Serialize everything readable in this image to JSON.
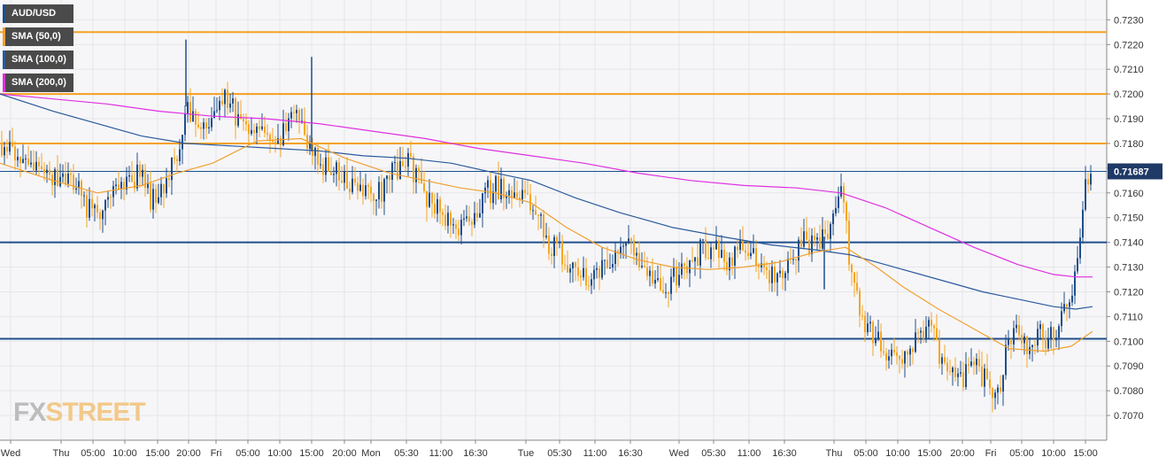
{
  "chart_data": {
    "type": "candlestick",
    "symbol": "AUD/USD",
    "ylim": [
      0.706,
      0.7238
    ],
    "yticks": [
      "0.7070",
      "0.7080",
      "0.7090",
      "0.7100",
      "0.7110",
      "0.7120",
      "0.7130",
      "0.7140",
      "0.7150",
      "0.7160",
      "0.7170",
      "0.7180",
      "0.7190",
      "0.7200",
      "0.7210",
      "0.7220",
      "0.7230"
    ],
    "xticks": [
      "Wed",
      "Thu",
      "05:00",
      "10:00",
      "15:00",
      "20:00",
      "Fri",
      "05:00",
      "10:00",
      "15:00",
      "20:00",
      "Mon",
      "05:30",
      "11:00",
      "16:30",
      "Tue",
      "05:30",
      "11:00",
      "16:30",
      "Wed",
      "05:30",
      "11:00",
      "16:30",
      "Thu",
      "05:00",
      "10:00",
      "15:00",
      "20:00",
      "Fri",
      "05:00",
      "10:00",
      "15:00"
    ],
    "price_label": "0.71687",
    "last_price": 0.71687,
    "colors": {
      "up": "#1f4e8c",
      "down": "#f5a623",
      "sma50": "#f0a030",
      "sma100": "#2a5a9c",
      "sma200": "#e030e0",
      "level_orange": "#f5a020",
      "level_blue": "#1f4e8c"
    },
    "levels": [
      {
        "price": 0.7225,
        "color": "orange"
      },
      {
        "price": 0.72,
        "color": "orange"
      },
      {
        "price": 0.718,
        "color": "orange"
      },
      {
        "price": 0.714,
        "color": "blue"
      },
      {
        "price": 0.7101,
        "color": "blue"
      }
    ],
    "price_path": [
      [
        0,
        0.718
      ],
      [
        10,
        0.7178
      ],
      [
        20,
        0.7172
      ],
      [
        30,
        0.7175
      ],
      [
        40,
        0.7168
      ],
      [
        50,
        0.717
      ],
      [
        60,
        0.7166
      ],
      [
        70,
        0.7168
      ],
      [
        80,
        0.7165
      ],
      [
        90,
        0.716
      ],
      [
        100,
        0.7153
      ],
      [
        110,
        0.7155
      ],
      [
        120,
        0.7152
      ],
      [
        130,
        0.716
      ],
      [
        140,
        0.7162
      ],
      [
        150,
        0.7165
      ],
      [
        160,
        0.717
      ],
      [
        170,
        0.7158
      ],
      [
        180,
        0.716
      ],
      [
        190,
        0.7168
      ],
      [
        200,
        0.7172
      ],
      [
        210,
        0.7195
      ],
      [
        220,
        0.7188
      ],
      [
        230,
        0.7185
      ],
      [
        240,
        0.7192
      ],
      [
        250,
        0.7198
      ],
      [
        260,
        0.7195
      ],
      [
        270,
        0.719
      ],
      [
        280,
        0.7188
      ],
      [
        290,
        0.7185
      ],
      [
        300,
        0.718
      ],
      [
        310,
        0.7178
      ],
      [
        320,
        0.7185
      ],
      [
        330,
        0.719
      ],
      [
        340,
        0.7188
      ],
      [
        350,
        0.7178
      ],
      [
        360,
        0.7172
      ],
      [
        370,
        0.717
      ],
      [
        380,
        0.7168
      ],
      [
        390,
        0.7165
      ],
      [
        400,
        0.7162
      ],
      [
        410,
        0.716
      ],
      [
        420,
        0.7158
      ],
      [
        430,
        0.716
      ],
      [
        440,
        0.7168
      ],
      [
        450,
        0.717
      ],
      [
        460,
        0.7172
      ],
      [
        470,
        0.7168
      ],
      [
        480,
        0.716
      ],
      [
        490,
        0.7155
      ],
      [
        500,
        0.715
      ],
      [
        510,
        0.7148
      ],
      [
        520,
        0.7145
      ],
      [
        530,
        0.715
      ],
      [
        540,
        0.7155
      ],
      [
        550,
        0.716
      ],
      [
        560,
        0.7162
      ],
      [
        570,
        0.716
      ],
      [
        580,
        0.7162
      ],
      [
        590,
        0.7158
      ],
      [
        600,
        0.7155
      ],
      [
        610,
        0.7148
      ],
      [
        620,
        0.714
      ],
      [
        630,
        0.7136
      ],
      [
        640,
        0.7132
      ],
      [
        650,
        0.7128
      ],
      [
        660,
        0.7125
      ],
      [
        670,
        0.7124
      ],
      [
        680,
        0.7128
      ],
      [
        690,
        0.7132
      ],
      [
        700,
        0.7136
      ],
      [
        710,
        0.7138
      ],
      [
        720,
        0.7132
      ],
      [
        730,
        0.7126
      ],
      [
        740,
        0.7122
      ],
      [
        750,
        0.712
      ],
      [
        760,
        0.7126
      ],
      [
        770,
        0.7128
      ],
      [
        780,
        0.7132
      ],
      [
        790,
        0.7136
      ],
      [
        800,
        0.7138
      ],
      [
        810,
        0.7136
      ],
      [
        820,
        0.7132
      ],
      [
        830,
        0.7136
      ],
      [
        840,
        0.7138
      ],
      [
        850,
        0.7136
      ],
      [
        860,
        0.7132
      ],
      [
        870,
        0.7128
      ],
      [
        880,
        0.7128
      ],
      [
        890,
        0.7132
      ],
      [
        900,
        0.7138
      ],
      [
        910,
        0.714
      ],
      [
        920,
        0.714
      ],
      [
        930,
        0.7142
      ],
      [
        940,
        0.7145
      ],
      [
        950,
        0.7162
      ],
      [
        955,
        0.7148
      ],
      [
        960,
        0.713
      ],
      [
        970,
        0.7115
      ],
      [
        980,
        0.7105
      ],
      [
        990,
        0.71
      ],
      [
        1000,
        0.7095
      ],
      [
        1010,
        0.7098
      ],
      [
        1020,
        0.7092
      ],
      [
        1030,
        0.7098
      ],
      [
        1040,
        0.7105
      ],
      [
        1050,
        0.7106
      ],
      [
        1060,
        0.7095
      ],
      [
        1070,
        0.7088
      ],
      [
        1080,
        0.7082
      ],
      [
        1090,
        0.7086
      ],
      [
        1100,
        0.709
      ],
      [
        1110,
        0.7085
      ],
      [
        1120,
        0.708
      ],
      [
        1128,
        0.7078
      ],
      [
        1135,
        0.7095
      ],
      [
        1145,
        0.7105
      ],
      [
        1155,
        0.71
      ],
      [
        1165,
        0.7098
      ],
      [
        1175,
        0.7102
      ],
      [
        1185,
        0.71
      ],
      [
        1195,
        0.7106
      ],
      [
        1205,
        0.7112
      ],
      [
        1212,
        0.7125
      ],
      [
        1218,
        0.714
      ],
      [
        1224,
        0.7158
      ],
      [
        1229,
        0.7168
      ],
      [
        1234,
        0.71687
      ]
    ],
    "wicks": [
      {
        "x": 210,
        "high": 0.7222
      },
      {
        "x": 352,
        "high": 0.7215
      },
      {
        "x": 931,
        "low": 0.7121
      }
    ],
    "sma50": [
      [
        0,
        0.7172
      ],
      [
        60,
        0.7165
      ],
      [
        110,
        0.716
      ],
      [
        160,
        0.7163
      ],
      [
        200,
        0.7168
      ],
      [
        240,
        0.7172
      ],
      [
        290,
        0.7181
      ],
      [
        340,
        0.7182
      ],
      [
        390,
        0.7174
      ],
      [
        440,
        0.7168
      ],
      [
        480,
        0.7165
      ],
      [
        520,
        0.7162
      ],
      [
        560,
        0.716
      ],
      [
        600,
        0.7156
      ],
      [
        640,
        0.7146
      ],
      [
        680,
        0.7138
      ],
      [
        720,
        0.7133
      ],
      [
        760,
        0.713
      ],
      [
        800,
        0.7129
      ],
      [
        840,
        0.713
      ],
      [
        880,
        0.7132
      ],
      [
        920,
        0.7136
      ],
      [
        955,
        0.7138
      ],
      [
        990,
        0.713
      ],
      [
        1020,
        0.7122
      ],
      [
        1060,
        0.7113
      ],
      [
        1100,
        0.7105
      ],
      [
        1140,
        0.7097
      ],
      [
        1180,
        0.7096
      ],
      [
        1210,
        0.7098
      ],
      [
        1234,
        0.7104
      ]
    ],
    "sma100": [
      [
        0,
        0.72
      ],
      [
        60,
        0.7193
      ],
      [
        110,
        0.7188
      ],
      [
        160,
        0.7183
      ],
      [
        210,
        0.718
      ],
      [
        260,
        0.7179
      ],
      [
        310,
        0.7178
      ],
      [
        360,
        0.7177
      ],
      [
        410,
        0.7175
      ],
      [
        460,
        0.7174
      ],
      [
        510,
        0.7172
      ],
      [
        560,
        0.7168
      ],
      [
        600,
        0.7165
      ],
      [
        650,
        0.7158
      ],
      [
        700,
        0.7152
      ],
      [
        760,
        0.7146
      ],
      [
        820,
        0.7142
      ],
      [
        870,
        0.7139
      ],
      [
        920,
        0.7137
      ],
      [
        960,
        0.7135
      ],
      [
        1010,
        0.713
      ],
      [
        1060,
        0.7125
      ],
      [
        1110,
        0.712
      ],
      [
        1150,
        0.7117
      ],
      [
        1190,
        0.7114
      ],
      [
        1215,
        0.7113
      ],
      [
        1234,
        0.7114
      ]
    ],
    "sma200": [
      [
        0,
        0.72
      ],
      [
        60,
        0.7198
      ],
      [
        120,
        0.7196
      ],
      [
        180,
        0.7193
      ],
      [
        240,
        0.7191
      ],
      [
        300,
        0.719
      ],
      [
        360,
        0.7188
      ],
      [
        420,
        0.7185
      ],
      [
        480,
        0.7182
      ],
      [
        540,
        0.7178
      ],
      [
        600,
        0.7175
      ],
      [
        660,
        0.7172
      ],
      [
        720,
        0.7168
      ],
      [
        780,
        0.7165
      ],
      [
        840,
        0.7163
      ],
      [
        900,
        0.7162
      ],
      [
        950,
        0.716
      ],
      [
        1000,
        0.7154
      ],
      [
        1050,
        0.7146
      ],
      [
        1100,
        0.7138
      ],
      [
        1150,
        0.7131
      ],
      [
        1190,
        0.7127
      ],
      [
        1215,
        0.7126
      ],
      [
        1234,
        0.7126
      ]
    ]
  },
  "legend": [
    {
      "label": "AUD/USD",
      "color": "#1f4e8c"
    },
    {
      "label": "SMA (50,0)",
      "color": "#f0a030"
    },
    {
      "label": "SMA (100,0)",
      "color": "#2a5a9c"
    },
    {
      "label": "SMA (200,0)",
      "color": "#e030e0"
    }
  ],
  "watermark": {
    "part1": "FX",
    "part2": "STREET"
  }
}
